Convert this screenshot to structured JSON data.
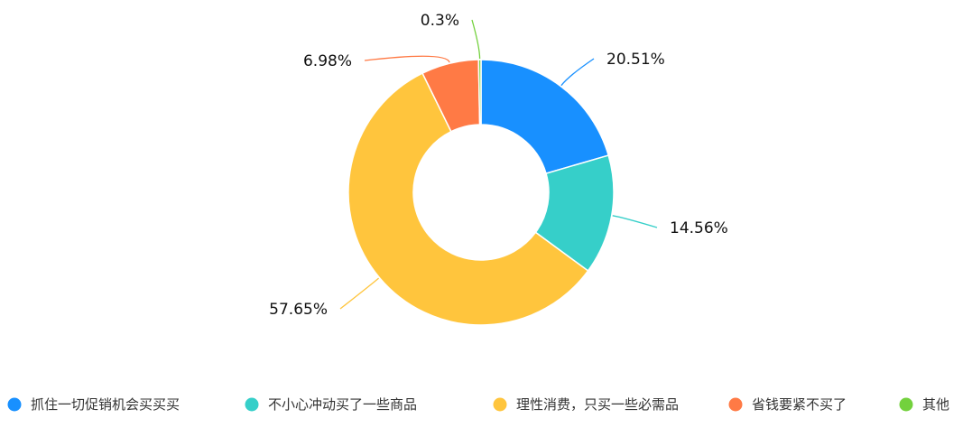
{
  "chart_data": {
    "type": "pie",
    "donut": true,
    "categories": [
      "抓住一切促销机会买买买",
      "不小心冲动买了一些商品",
      "理性消费，只买一些必需品",
      "省钱要紧不买了",
      "其他"
    ],
    "values": [
      20.51,
      14.56,
      57.65,
      6.98,
      0.3
    ],
    "value_labels": [
      "20.51%",
      "14.56%",
      "57.65%",
      "6.98%",
      "0.3%"
    ],
    "colors": [
      "#1890FF",
      "#36CFC9",
      "#FFC53D",
      "#FF7A45",
      "#73D13D"
    ],
    "legend_position": "bottom"
  }
}
